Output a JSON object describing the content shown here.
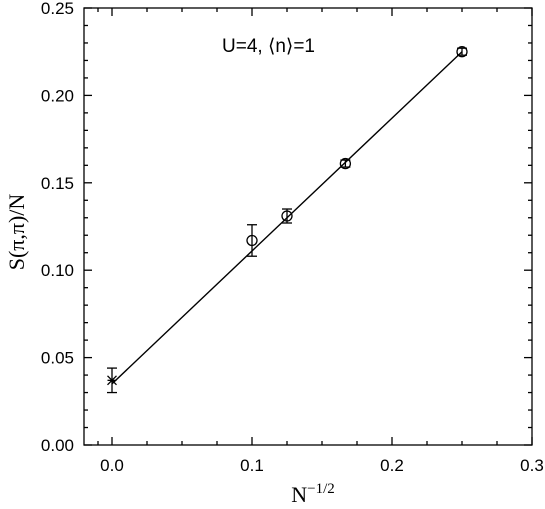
{
  "chart_data": {
    "type": "scatter",
    "title": "",
    "xlabel": "N",
    "xlabel_exponent": "−1/2",
    "ylabel": "S(π,π)/N",
    "annotation": "U=4,  ⟨n⟩=1",
    "xlim": [
      -0.02,
      0.3
    ],
    "ylim": [
      0.0,
      0.25
    ],
    "xticks": [
      0.0,
      0.1,
      0.2,
      0.3
    ],
    "xtick_labels": [
      "0.0",
      "0.1",
      "0.2",
      "0.3"
    ],
    "yticks": [
      0.0,
      0.05,
      0.1,
      0.15,
      0.2,
      0.25
    ],
    "ytick_labels": [
      "0.00",
      "0.05",
      "0.10",
      "0.15",
      "0.20",
      "0.25"
    ],
    "grid": false,
    "series": [
      {
        "marker": "circle",
        "x": [
          0.1,
          0.125,
          0.1667,
          0.25
        ],
        "y": [
          0.117,
          0.131,
          0.161,
          0.225
        ],
        "yerr": [
          0.009,
          0.004,
          0.002,
          0.002
        ]
      },
      {
        "marker": "asterisk",
        "x": [
          0.0
        ],
        "y": [
          0.037
        ],
        "yerr": [
          0.007
        ]
      }
    ],
    "fit_line": {
      "x": [
        0.0,
        0.25
      ],
      "y": [
        0.035,
        0.225
      ]
    }
  }
}
